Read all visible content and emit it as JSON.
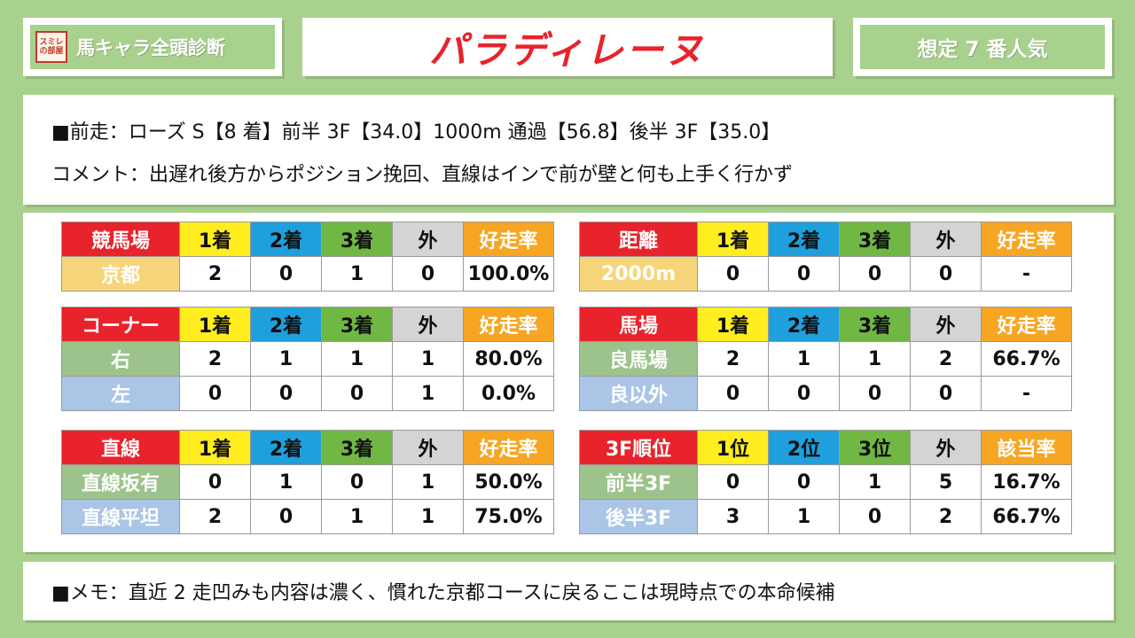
{
  "header": {
    "stamp_text": "スミレの部屋",
    "series": "馬キャラ全頭診断",
    "horse_name": "パラディレーヌ",
    "popularity": "想定 7 番人気"
  },
  "info": {
    "last_race": "■前走：ローズ S【8 着】前半 3F【34.0】1000m 通過【56.8】後半 3F【35.0】",
    "comment": "コメント：出遅れ後方からポジション挽回、直線はインで前が壁と何も上手く行かず"
  },
  "tables": {
    "course": {
      "headers": [
        "競馬場",
        "1着",
        "2着",
        "3着",
        "外",
        "好走率"
      ],
      "rows": [
        {
          "label": "京都",
          "values": [
            "2",
            "0",
            "1",
            "0",
            "100.0%"
          ]
        }
      ]
    },
    "distance": {
      "headers": [
        "距離",
        "1着",
        "2着",
        "3着",
        "外",
        "好走率"
      ],
      "rows": [
        {
          "label": "2000m",
          "values": [
            "0",
            "0",
            "0",
            "0",
            "-"
          ]
        }
      ]
    },
    "corner": {
      "headers": [
        "コーナー",
        "1着",
        "2着",
        "3着",
        "外",
        "好走率"
      ],
      "rows": [
        {
          "label": "右",
          "values": [
            "2",
            "1",
            "1",
            "1",
            "80.0%"
          ]
        },
        {
          "label": "左",
          "values": [
            "0",
            "0",
            "0",
            "1",
            "0.0%"
          ]
        }
      ]
    },
    "track": {
      "headers": [
        "馬場",
        "1着",
        "2着",
        "3着",
        "外",
        "好走率"
      ],
      "rows": [
        {
          "label": "良馬場",
          "values": [
            "2",
            "1",
            "1",
            "2",
            "66.7%"
          ]
        },
        {
          "label": "良以外",
          "values": [
            "0",
            "0",
            "0",
            "0",
            "-"
          ]
        }
      ]
    },
    "straight": {
      "headers": [
        "直線",
        "1着",
        "2着",
        "3着",
        "外",
        "好走率"
      ],
      "rows": [
        {
          "label": "直線坂有",
          "values": [
            "0",
            "1",
            "0",
            "1",
            "50.0%"
          ]
        },
        {
          "label": "直線平坦",
          "values": [
            "2",
            "0",
            "1",
            "1",
            "75.0%"
          ]
        }
      ]
    },
    "rank3f": {
      "headers": [
        "3F順位",
        "1位",
        "2位",
        "3位",
        "外",
        "該当率"
      ],
      "rows": [
        {
          "label": "前半3F",
          "values": [
            "0",
            "0",
            "1",
            "5",
            "16.7%"
          ]
        },
        {
          "label": "後半3F",
          "values": [
            "3",
            "1",
            "0",
            "2",
            "66.7%"
          ]
        }
      ]
    }
  },
  "memo": "■メモ：直近 2 走凹みも内容は濃く、慣れた京都コースに戻るここは現時点での本命候補",
  "colors": {
    "background": "#a9d18e",
    "title_red": "#e8232b",
    "header_yellow": "#ffed1f",
    "header_blue": "#1fa0dc",
    "header_green": "#70b843",
    "header_gray": "#d4d4d4",
    "header_orange": "#f6a623"
  }
}
